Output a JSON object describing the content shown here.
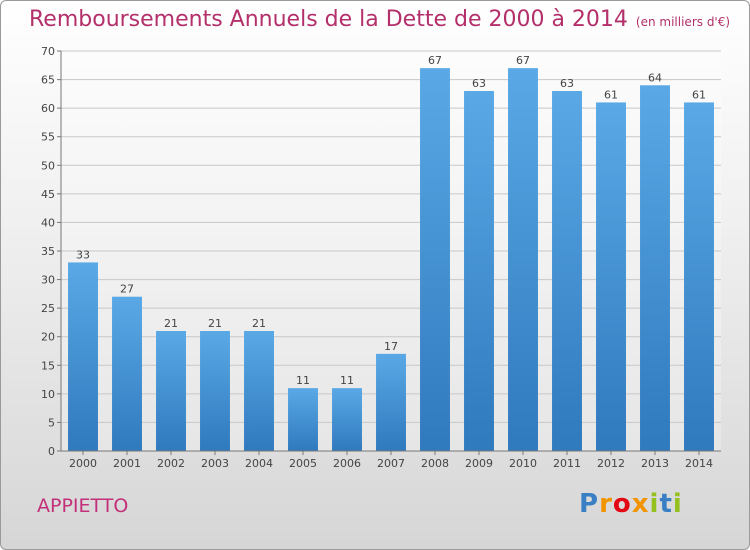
{
  "chart_data": {
    "type": "bar",
    "title": "Remboursements Annuels de la Dette de 2000 à 2014",
    "subtitle": "(en milliers d'€)",
    "categories": [
      "2000",
      "2001",
      "2002",
      "2003",
      "2004",
      "2005",
      "2006",
      "2007",
      "2008",
      "2009",
      "2010",
      "2011",
      "2012",
      "2013",
      "2014"
    ],
    "values": [
      33,
      27,
      21,
      21,
      21,
      11,
      11,
      17,
      67,
      63,
      67,
      63,
      61,
      64,
      61
    ],
    "ylim": [
      0,
      70
    ],
    "yticks": [
      0,
      5,
      10,
      15,
      20,
      25,
      30,
      35,
      40,
      45,
      50,
      55,
      60,
      65,
      70
    ],
    "grid": true,
    "bar_color_top": "#5aa9e6",
    "bar_color_bottom": "#2f79bd",
    "xlabel": "",
    "ylabel": ""
  },
  "commune": "APPIETTO",
  "logo": {
    "letters": [
      "P",
      "r",
      "o",
      "x",
      "i",
      "t",
      "i"
    ],
    "colors": [
      "#3a7fc4",
      "#f29400",
      "#e30613",
      "#f29400",
      "#95c11f",
      "#3a7fc4",
      "#95c11f"
    ]
  }
}
